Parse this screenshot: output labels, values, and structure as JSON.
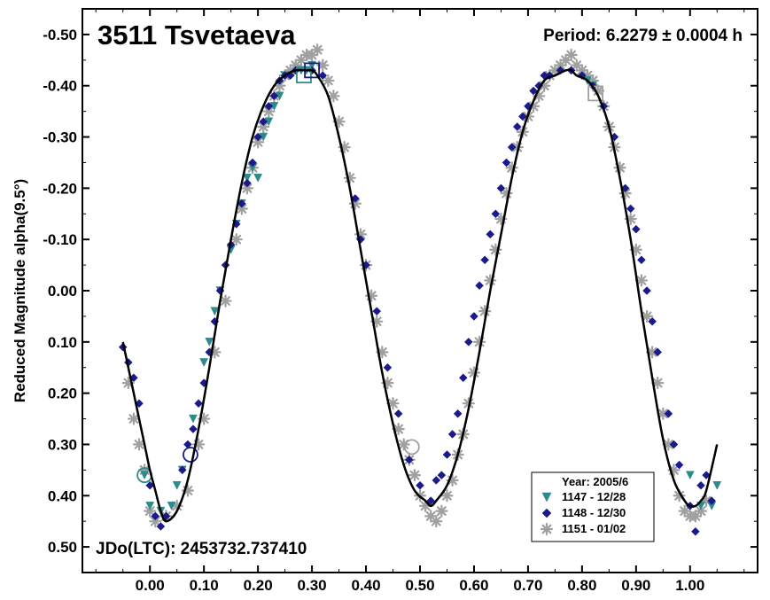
{
  "chart_data": {
    "type": "scatter",
    "title": "3511 Tsvetaeva",
    "period_text": "Period: 6.2279 ± 0.0004 h",
    "epoch_text": "JDo(LTC): 2453732.737410",
    "xlabel": "",
    "ylabel": "Reduced Magnitude alpha(9.5°)",
    "xlim": [
      -0.125,
      1.125
    ],
    "ylim": [
      0.55,
      -0.55
    ],
    "y_inverted": true,
    "xticks": [
      0.0,
      0.1,
      0.2,
      0.3,
      0.4,
      0.5,
      0.6,
      0.7,
      0.8,
      0.9,
      1.0
    ],
    "xtick_labels": [
      "0.00",
      "0.10",
      "0.20",
      "0.30",
      "0.40",
      "0.50",
      "0.60",
      "0.70",
      "0.80",
      "0.90",
      "1.00"
    ],
    "yticks": [
      -0.5,
      -0.4,
      -0.3,
      -0.2,
      -0.1,
      0.0,
      0.1,
      0.2,
      0.3,
      0.4,
      0.5
    ],
    "ytick_labels": [
      "-0.50",
      "-0.40",
      "-0.30",
      "-0.20",
      "-0.10",
      "0.00",
      "0.10",
      "0.20",
      "0.30",
      "0.40",
      "0.50"
    ],
    "grid": false,
    "legend": {
      "title": "Year: 2005/6",
      "placement": "bottom-right",
      "entries": [
        {
          "label": "1147 - 12/28",
          "marker": "triangle-down",
          "color": "#2e8b8b"
        },
        {
          "label": "1148 - 12/30",
          "marker": "diamond",
          "color": "#1a1a8c"
        },
        {
          "label": "1151 - 01/02",
          "marker": "asterisk",
          "color": "#a0a0a0"
        }
      ]
    },
    "fit_curve": {
      "color": "#000000",
      "x": [
        -0.05,
        -0.03,
        -0.01,
        0.0,
        0.01,
        0.02,
        0.03,
        0.05,
        0.07,
        0.09,
        0.11,
        0.13,
        0.15,
        0.17,
        0.19,
        0.21,
        0.23,
        0.25,
        0.27,
        0.29,
        0.3,
        0.31,
        0.33,
        0.35,
        0.37,
        0.39,
        0.41,
        0.43,
        0.45,
        0.47,
        0.49,
        0.51,
        0.52,
        0.53,
        0.55,
        0.57,
        0.59,
        0.61,
        0.63,
        0.65,
        0.67,
        0.69,
        0.71,
        0.73,
        0.75,
        0.77,
        0.78,
        0.79,
        0.81,
        0.83,
        0.85,
        0.87,
        0.89,
        0.91,
        0.93,
        0.95,
        0.97,
        0.99,
        1.0,
        1.01,
        1.02,
        1.03,
        1.05
      ],
      "y": [
        0.1,
        0.2,
        0.3,
        0.35,
        0.39,
        0.43,
        0.45,
        0.43,
        0.37,
        0.27,
        0.15,
        0.02,
        -0.1,
        -0.21,
        -0.3,
        -0.36,
        -0.4,
        -0.42,
        -0.43,
        -0.43,
        -0.43,
        -0.42,
        -0.38,
        -0.3,
        -0.2,
        -0.08,
        0.04,
        0.16,
        0.26,
        0.34,
        0.39,
        0.41,
        0.42,
        0.41,
        0.38,
        0.32,
        0.23,
        0.12,
        0.0,
        -0.11,
        -0.22,
        -0.31,
        -0.37,
        -0.41,
        -0.42,
        -0.43,
        -0.43,
        -0.42,
        -0.41,
        -0.38,
        -0.32,
        -0.22,
        -0.1,
        0.04,
        0.17,
        0.29,
        0.37,
        0.41,
        0.42,
        0.42,
        0.41,
        0.39,
        0.3
      ]
    },
    "series": [
      {
        "name": "1147 - 12/28",
        "marker": "triangle-down",
        "color": "#2e8b8b",
        "x": [
          -0.01,
          0.0,
          0.02,
          0.04,
          0.05,
          0.06,
          0.08,
          0.1,
          0.11,
          0.12,
          0.13,
          0.15,
          0.16,
          0.17,
          0.18,
          0.19,
          0.2,
          0.21,
          0.22,
          0.23,
          0.24,
          0.25,
          0.28,
          0.29,
          0.3,
          0.81,
          0.82,
          1.0,
          1.02,
          1.04,
          1.05
        ],
        "y": [
          0.36,
          0.42,
          0.43,
          0.42,
          0.38,
          0.35,
          0.25,
          0.14,
          0.1,
          0.04,
          0.0,
          -0.08,
          -0.13,
          -0.17,
          -0.22,
          -0.24,
          -0.22,
          -0.3,
          -0.33,
          -0.36,
          -0.38,
          -0.42,
          -0.43,
          -0.43,
          -0.44,
          -0.41,
          -0.4,
          0.36,
          0.42,
          0.42,
          0.38
        ]
      },
      {
        "name": "1148 - 12/30",
        "marker": "diamond",
        "color": "#1a1a8c",
        "x": [
          -0.05,
          -0.04,
          -0.03,
          -0.02,
          0.0,
          0.01,
          0.02,
          0.03,
          0.06,
          0.07,
          0.08,
          0.09,
          0.1,
          0.11,
          0.12,
          0.13,
          0.14,
          0.15,
          0.16,
          0.17,
          0.18,
          0.19,
          0.2,
          0.21,
          0.22,
          0.23,
          0.24,
          0.25,
          0.26,
          0.27,
          0.3,
          0.32,
          0.38,
          0.39,
          0.4,
          0.42,
          0.44,
          0.46,
          0.48,
          0.5,
          0.52,
          0.53,
          0.54,
          0.55,
          0.56,
          0.57,
          0.58,
          0.59,
          0.6,
          0.61,
          0.62,
          0.63,
          0.64,
          0.65,
          0.66,
          0.67,
          0.68,
          0.69,
          0.7,
          0.71,
          0.72,
          0.73,
          0.74,
          0.76,
          0.78,
          0.8,
          0.82,
          0.84,
          0.86,
          0.88,
          0.89,
          0.9,
          0.91,
          0.92,
          0.93,
          0.94,
          0.96,
          0.97,
          0.98,
          1.0,
          1.01,
          1.02,
          1.03,
          1.04
        ],
        "y": [
          0.11,
          0.14,
          0.17,
          0.22,
          0.38,
          0.44,
          0.46,
          0.44,
          0.35,
          0.3,
          0.27,
          0.22,
          0.18,
          0.12,
          0.06,
          0.0,
          -0.05,
          -0.09,
          -0.13,
          -0.17,
          -0.21,
          -0.25,
          -0.3,
          -0.33,
          -0.36,
          -0.38,
          -0.41,
          -0.42,
          -0.42,
          -0.43,
          -0.43,
          -0.42,
          -0.18,
          -0.1,
          -0.05,
          0.04,
          0.15,
          0.24,
          0.33,
          0.38,
          0.41,
          0.37,
          0.36,
          0.32,
          0.28,
          0.24,
          0.17,
          0.1,
          0.05,
          -0.01,
          -0.06,
          -0.11,
          -0.15,
          -0.2,
          -0.25,
          -0.28,
          -0.32,
          -0.34,
          -0.36,
          -0.39,
          -0.4,
          -0.42,
          -0.42,
          -0.43,
          -0.43,
          -0.42,
          -0.4,
          -0.36,
          -0.3,
          -0.2,
          -0.16,
          -0.12,
          -0.06,
          0.0,
          0.06,
          0.12,
          0.24,
          0.3,
          0.34,
          0.42,
          0.47,
          0.38,
          0.36,
          0.41
        ]
      },
      {
        "name": "1151 - 01/02",
        "marker": "asterisk",
        "color": "#a0a0a0",
        "x": [
          -0.04,
          -0.03,
          -0.02,
          -0.01,
          0.0,
          0.01,
          0.03,
          0.05,
          0.07,
          0.09,
          0.1,
          0.12,
          0.14,
          0.16,
          0.17,
          0.18,
          0.19,
          0.2,
          0.21,
          0.22,
          0.23,
          0.24,
          0.25,
          0.26,
          0.27,
          0.28,
          0.29,
          0.3,
          0.31,
          0.32,
          0.33,
          0.34,
          0.35,
          0.36,
          0.37,
          0.38,
          0.39,
          0.4,
          0.41,
          0.42,
          0.43,
          0.44,
          0.45,
          0.46,
          0.47,
          0.48,
          0.49,
          0.5,
          0.51,
          0.52,
          0.53,
          0.54,
          0.55,
          0.56,
          0.57,
          0.58,
          0.59,
          0.6,
          0.61,
          0.62,
          0.63,
          0.64,
          0.65,
          0.66,
          0.67,
          0.68,
          0.69,
          0.7,
          0.71,
          0.72,
          0.73,
          0.74,
          0.75,
          0.76,
          0.77,
          0.78,
          0.79,
          0.8,
          0.81,
          0.82,
          0.83,
          0.84,
          0.85,
          0.86,
          0.87,
          0.88,
          0.89,
          0.9,
          0.91,
          0.92,
          0.93,
          0.94,
          0.95,
          0.96,
          0.97,
          0.98,
          0.99,
          1.0,
          1.01,
          1.02,
          1.03
        ],
        "y": [
          0.18,
          0.25,
          0.3,
          0.35,
          0.43,
          0.45,
          0.44,
          0.42,
          0.39,
          0.3,
          0.25,
          0.12,
          0.02,
          -0.1,
          -0.16,
          -0.2,
          -0.24,
          -0.29,
          -0.32,
          -0.35,
          -0.38,
          -0.4,
          -0.42,
          -0.43,
          -0.44,
          -0.45,
          -0.46,
          -0.46,
          -0.47,
          -0.44,
          -0.41,
          -0.38,
          -0.33,
          -0.28,
          -0.22,
          -0.17,
          -0.11,
          -0.05,
          0.01,
          0.06,
          0.12,
          0.18,
          0.22,
          0.27,
          0.3,
          0.33,
          0.36,
          0.4,
          0.42,
          0.44,
          0.45,
          0.43,
          0.4,
          0.37,
          0.32,
          0.28,
          0.22,
          0.16,
          0.1,
          0.04,
          -0.02,
          -0.08,
          -0.14,
          -0.19,
          -0.24,
          -0.28,
          -0.31,
          -0.34,
          -0.36,
          -0.38,
          -0.4,
          -0.42,
          -0.43,
          -0.44,
          -0.45,
          -0.46,
          -0.44,
          -0.43,
          -0.42,
          -0.41,
          -0.39,
          -0.36,
          -0.32,
          -0.28,
          -0.24,
          -0.19,
          -0.14,
          -0.08,
          -0.02,
          0.05,
          0.12,
          0.18,
          0.24,
          0.3,
          0.35,
          0.4,
          0.43,
          0.44,
          0.44,
          0.43,
          0.41
        ]
      }
    ],
    "open_markers": [
      {
        "x": -0.01,
        "y": 0.36,
        "shape": "circle",
        "color": "#2e8b8b"
      },
      {
        "x": 0.075,
        "y": 0.32,
        "shape": "circle",
        "color": "#1a1a8c"
      },
      {
        "x": 0.485,
        "y": 0.305,
        "shape": "circle",
        "color": "#a0a0a0"
      },
      {
        "x": 0.285,
        "y": -0.42,
        "shape": "square",
        "color": "#2e8b8b"
      },
      {
        "x": 0.3,
        "y": -0.43,
        "shape": "square",
        "color": "#1a1a8c"
      },
      {
        "x": 0.825,
        "y": -0.385,
        "shape": "square",
        "color": "#a0a0a0"
      }
    ]
  }
}
